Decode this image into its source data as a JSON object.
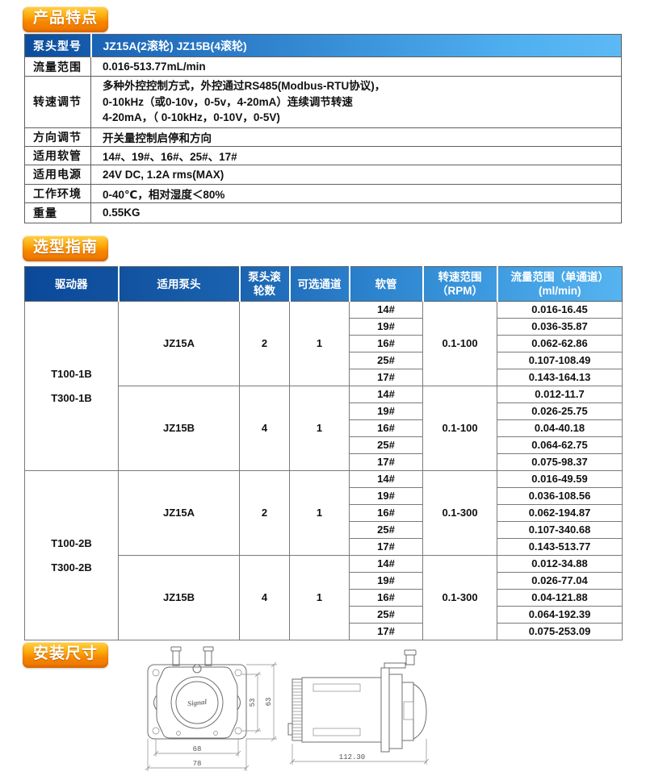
{
  "sections": {
    "features": {
      "title": "产品特点"
    },
    "guide": {
      "title": "选型指南"
    },
    "install": {
      "title": "安装尺寸"
    }
  },
  "colors": {
    "badge_orange_top": "#ffd24a",
    "badge_orange_bottom": "#ee7600",
    "header_blue_dark": "#0b489a",
    "header_blue_light": "#55b4f0",
    "table_border": "#5f5f5f"
  },
  "spec": {
    "header": {
      "label": "泵头型号",
      "value": "JZ15A(2滚轮) JZ15B(4滚轮)"
    },
    "rows": [
      {
        "label": "流量范围",
        "value": "0.016-513.77mL/min"
      },
      {
        "label": "转速调节",
        "value": "多种外控控制方式，外控通过RS485(Modbus-RTU协议)，\n0-10kHz（或0-10v，0-5v，4-20mA）连续调节转速\n4-20mA，（ 0-10kHz，0-10V，0-5V)"
      },
      {
        "label": "方向调节",
        "value": "开关量控制启停和方向"
      },
      {
        "label": "适用软管",
        "value": "14#、19#、16#、25#、17#"
      },
      {
        "label": "适用电源",
        "value": "24V DC, 1.2A rms(MAX)"
      },
      {
        "label": "工作环境",
        "value": "0-40℃，相对湿度＜80%"
      },
      {
        "label": "重量",
        "value": "0.55KG"
      }
    ]
  },
  "guide": {
    "headers": [
      "驱动器",
      "适用泵头",
      "泵头滚\n轮数",
      "可选通道",
      "软管",
      "转速范围\n（RPM）",
      "流量范围（单通道）\n(ml/min)"
    ],
    "driver_groups": [
      {
        "driver": "T100-1B\nT300-1B",
        "pump_groups": [
          {
            "pump": "JZ15A",
            "rollers": "2",
            "channels": "1",
            "speed": "0.1-100",
            "tubes": [
              "14#",
              "19#",
              "16#",
              "25#",
              "17#"
            ],
            "flows": [
              "0.016-16.45",
              "0.036-35.87",
              "0.062-62.86",
              "0.107-108.49",
              "0.143-164.13"
            ]
          },
          {
            "pump": "JZ15B",
            "rollers": "4",
            "channels": "1",
            "speed": "0.1-100",
            "tubes": [
              "14#",
              "19#",
              "16#",
              "25#",
              "17#"
            ],
            "flows": [
              "0.012-11.7",
              "0.026-25.75",
              "0.04-40.18",
              "0.064-62.75",
              "0.075-98.37"
            ]
          }
        ]
      },
      {
        "driver": "T100-2B\nT300-2B",
        "pump_groups": [
          {
            "pump": "JZ15A",
            "rollers": "2",
            "channels": "1",
            "speed": "0.1-300",
            "tubes": [
              "14#",
              "19#",
              "16#",
              "25#",
              "17#"
            ],
            "flows": [
              "0.016-49.59",
              "0.036-108.56",
              "0.062-194.87",
              "0.107-340.68",
              "0.143-513.77"
            ]
          },
          {
            "pump": "JZ15B",
            "rollers": "4",
            "channels": "1",
            "speed": "0.1-300",
            "tubes": [
              "14#",
              "19#",
              "16#",
              "25#",
              "17#"
            ],
            "flows": [
              "0.012-34.88",
              "0.026-77.04",
              "0.04-121.88",
              "0.064-192.39",
              "0.075-253.09"
            ]
          }
        ]
      }
    ]
  },
  "install": {
    "front": {
      "dim_head_height": "53",
      "dim_plate_height": "63",
      "dim_hole_span": "68",
      "dim_plate_width": "78",
      "logo": "Signal"
    },
    "side": {
      "dim_length": "112.30"
    }
  }
}
